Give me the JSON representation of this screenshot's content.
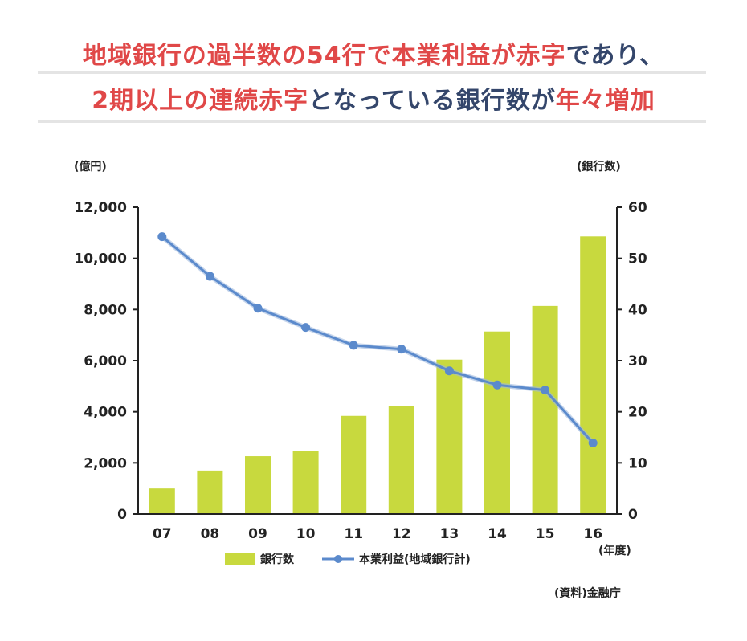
{
  "headline": {
    "line1": [
      {
        "text": "地域銀行の過半数の54行で本業利益が赤字",
        "color": "red"
      },
      {
        "text": "であり、",
        "color": "navy"
      }
    ],
    "line2": [
      {
        "text": "2期以上の連続赤字",
        "color": "red"
      },
      {
        "text": "となっている銀行数が",
        "color": "navy"
      },
      {
        "text": "年々増加",
        "color": "red"
      }
    ]
  },
  "colors": {
    "bar": "#c8d93e",
    "line": "#5b8acc",
    "accent_red": "#e04848",
    "accent_navy": "#34466b"
  },
  "source": "(資料)金融庁",
  "chart_data": {
    "type": "bar",
    "categories": [
      "07",
      "08",
      "09",
      "10",
      "11",
      "12",
      "13",
      "14",
      "15",
      "16"
    ],
    "xlabel_unit": "(年度)",
    "left_axis": {
      "unit": "(億円)",
      "range": [
        0,
        12000
      ],
      "ticks": [
        "0",
        "2,000",
        "4,000",
        "6,000",
        "8,000",
        "10,000",
        "12,000"
      ]
    },
    "right_axis": {
      "unit": "(銀行数)",
      "range": [
        0,
        60
      ],
      "ticks": [
        "0",
        "10",
        "20",
        "30",
        "40",
        "50",
        "60"
      ]
    },
    "series": [
      {
        "name": "銀行数",
        "type": "bar",
        "axis": "right",
        "values": [
          5,
          8.5,
          11.3,
          12.3,
          19.2,
          21.2,
          30.2,
          35.7,
          40.7,
          54.3
        ]
      },
      {
        "name": "本業利益(地域銀行計)",
        "type": "line",
        "axis": "left",
        "values": [
          10850,
          9300,
          8050,
          7300,
          6600,
          6450,
          5600,
          5050,
          4850,
          2780
        ]
      }
    ],
    "grid": false,
    "legend": "bottom"
  }
}
